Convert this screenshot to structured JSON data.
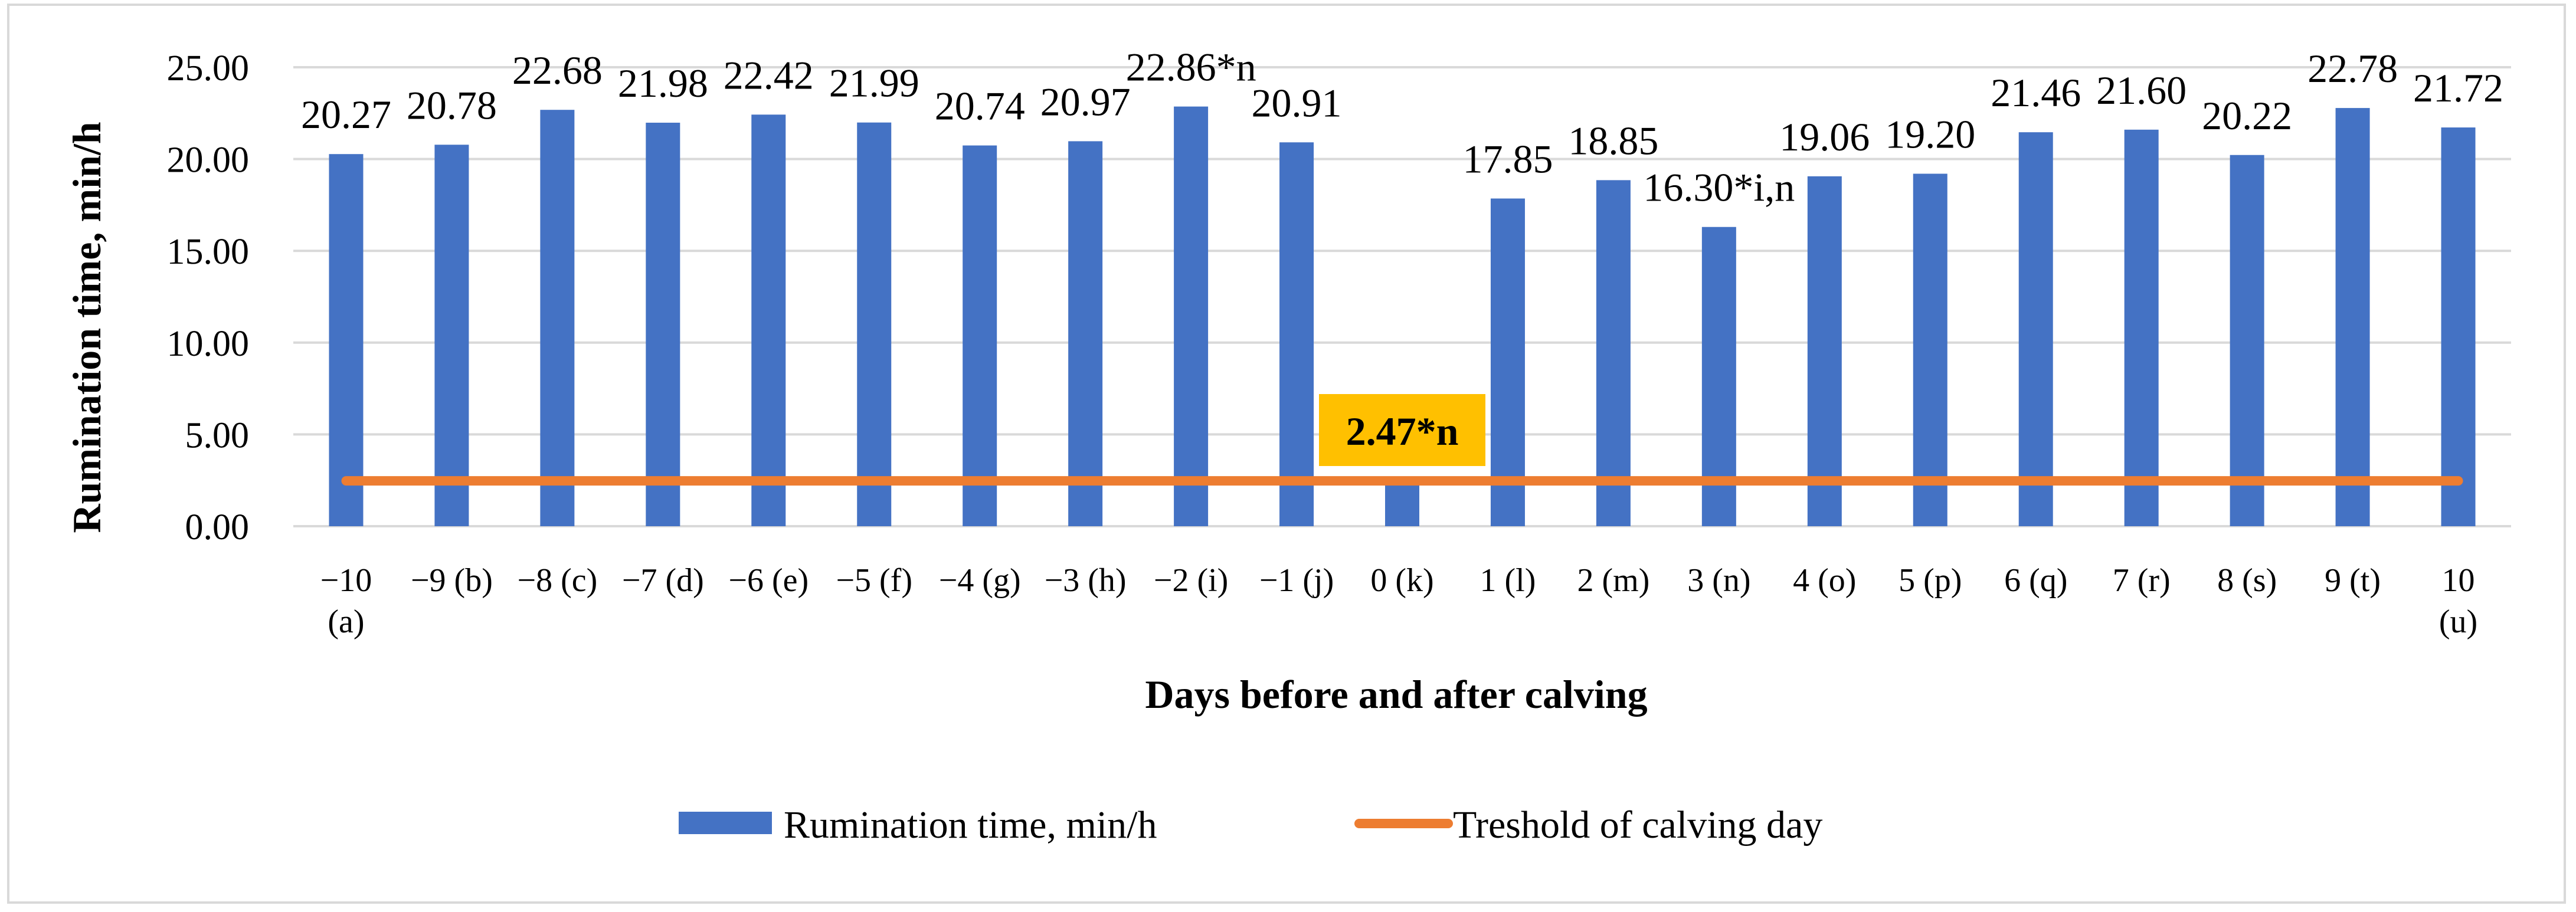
{
  "chart_data": {
    "type": "bar",
    "title": "",
    "xlabel": "Days before and after calving",
    "ylabel": "Rumination time, min/h",
    "ylim": [
      0,
      25
    ],
    "yticks": [
      "0.00",
      "5.00",
      "10.00",
      "15.00",
      "20.00",
      "25.00"
    ],
    "grid": true,
    "legend_position": "bottom",
    "categories": [
      [
        "−10",
        "(a)"
      ],
      [
        "−9 (b)"
      ],
      [
        "−8 (c)"
      ],
      [
        "−7 (d)"
      ],
      [
        "−6 (e)"
      ],
      [
        "−5 (f)"
      ],
      [
        "−4 (g)"
      ],
      [
        "−3 (h)"
      ],
      [
        "−2 (i)"
      ],
      [
        "−1 (j)"
      ],
      [
        "0 (k)"
      ],
      [
        "1 (l)"
      ],
      [
        "2 (m)"
      ],
      [
        "3 (n)"
      ],
      [
        "4 (o)"
      ],
      [
        "5 (p)"
      ],
      [
        "6 (q)"
      ],
      [
        "7 (r)"
      ],
      [
        "8 (s)"
      ],
      [
        "9 (t)"
      ],
      [
        "10",
        "(u)"
      ]
    ],
    "series": [
      {
        "name": "Rumination time, min/h",
        "type": "bar",
        "color": "#4472c4",
        "values": [
          20.27,
          20.78,
          22.68,
          21.98,
          22.42,
          21.99,
          20.74,
          20.97,
          22.86,
          20.91,
          2.47,
          17.85,
          18.85,
          16.3,
          19.06,
          19.2,
          21.46,
          21.6,
          20.22,
          22.78,
          21.72
        ],
        "labels": [
          "20.27",
          "20.78",
          "22.68",
          "21.98",
          "22.42",
          "21.99",
          "20.74",
          "20.97",
          "22.86*n",
          "20.91",
          "2.47*n",
          "17.85",
          "18.85",
          "16.30*i,n",
          "19.06",
          "19.20",
          "21.46",
          "21.60",
          "20.22",
          "22.78",
          "21.72"
        ]
      },
      {
        "name": "Treshold of calving day",
        "type": "line",
        "color": "#ed7d31",
        "value": 2.47
      }
    ],
    "highlight_label": {
      "index": 10,
      "text": "2.47*n",
      "background": "#ffc000"
    }
  }
}
